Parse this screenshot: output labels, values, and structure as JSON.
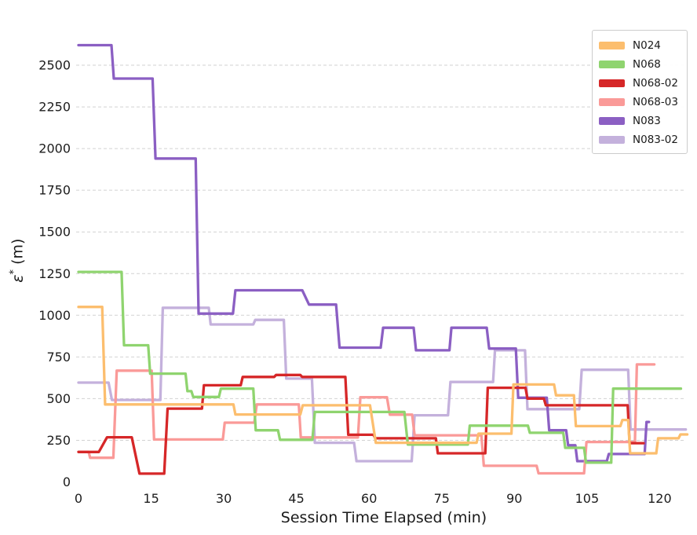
{
  "figure": {
    "ylabel_parts": {
      "symbol": "ε",
      "sup": "*",
      "unit": " (m)"
    }
  },
  "chart_data": {
    "type": "line",
    "subtype": "step",
    "title": "",
    "xlabel": "Session Time Elapsed (min)",
    "ylabel": "ε* (m)",
    "xlim": [
      0,
      126
    ],
    "ylim": [
      0,
      2730
    ],
    "xticks": [
      0,
      15,
      30,
      45,
      60,
      75,
      90,
      105,
      120
    ],
    "yticks": [
      0,
      250,
      500,
      750,
      1000,
      1250,
      1500,
      1750,
      2000,
      2250,
      2500
    ],
    "grid": "horizontal-dashed",
    "grid_color": "#d2d2d2",
    "legend_position": "upper right",
    "series": [
      {
        "name": "N024",
        "color": "#fcbe6e",
        "points": [
          [
            0,
            1050
          ],
          [
            4.9,
            1050
          ],
          [
            5.5,
            465
          ],
          [
            32.0,
            465
          ],
          [
            32.4,
            405
          ],
          [
            45.8,
            405
          ],
          [
            46.3,
            460
          ],
          [
            60.2,
            460
          ],
          [
            61.4,
            235
          ],
          [
            82.2,
            235
          ],
          [
            82.6,
            290
          ],
          [
            89.4,
            290
          ],
          [
            89.8,
            585
          ],
          [
            98.2,
            585
          ],
          [
            98.6,
            520
          ],
          [
            102.3,
            520
          ],
          [
            102.7,
            335
          ],
          [
            111.9,
            335
          ],
          [
            112.3,
            372
          ],
          [
            113.5,
            372
          ],
          [
            113.9,
            172
          ],
          [
            119.3,
            172
          ],
          [
            119.7,
            262
          ],
          [
            123.9,
            262
          ],
          [
            124.3,
            285
          ],
          [
            125.7,
            285
          ]
        ]
      },
      {
        "name": "N068",
        "color": "#8fd46f",
        "points": [
          [
            0,
            1260
          ],
          [
            8.9,
            1260
          ],
          [
            9.4,
            820
          ],
          [
            14.4,
            820
          ],
          [
            14.8,
            650
          ],
          [
            22.1,
            650
          ],
          [
            22.5,
            545
          ],
          [
            23.3,
            545
          ],
          [
            23.7,
            510
          ],
          [
            29.0,
            510
          ],
          [
            29.4,
            560
          ],
          [
            36.1,
            560
          ],
          [
            36.6,
            310
          ],
          [
            41.2,
            310
          ],
          [
            41.6,
            253
          ],
          [
            48.3,
            253
          ],
          [
            48.8,
            420
          ],
          [
            67.3,
            420
          ],
          [
            68.0,
            225
          ],
          [
            80.4,
            225
          ],
          [
            80.8,
            338
          ],
          [
            92.8,
            338
          ],
          [
            93.2,
            295
          ],
          [
            100.1,
            295
          ],
          [
            100.5,
            205
          ],
          [
            104.4,
            205
          ],
          [
            104.8,
            116
          ],
          [
            110.0,
            116
          ],
          [
            110.4,
            560
          ],
          [
            124.4,
            560
          ]
        ]
      },
      {
        "name": "N068-02",
        "color": "#d62728",
        "points": [
          [
            0,
            180
          ],
          [
            4.2,
            180
          ],
          [
            5.9,
            268
          ],
          [
            11.0,
            268
          ],
          [
            12.6,
            50
          ],
          [
            17.7,
            50
          ],
          [
            18.4,
            440
          ],
          [
            25.5,
            440
          ],
          [
            25.9,
            580
          ],
          [
            33.5,
            580
          ],
          [
            33.9,
            630
          ],
          [
            40.4,
            630
          ],
          [
            40.8,
            642
          ],
          [
            45.8,
            642
          ],
          [
            46.2,
            630
          ],
          [
            55.1,
            630
          ],
          [
            55.7,
            283
          ],
          [
            60.9,
            283
          ],
          [
            61.3,
            262
          ],
          [
            73.8,
            262
          ],
          [
            74.2,
            172
          ],
          [
            84.0,
            172
          ],
          [
            84.5,
            565
          ],
          [
            92.3,
            565
          ],
          [
            92.7,
            500
          ],
          [
            96.1,
            500
          ],
          [
            96.5,
            460
          ],
          [
            113.4,
            460
          ],
          [
            113.8,
            233
          ],
          [
            116.7,
            233
          ]
        ]
      },
      {
        "name": "N068-03",
        "color": "#fa9a98",
        "points": [
          [
            0,
            180
          ],
          [
            2.1,
            180
          ],
          [
            2.4,
            145
          ],
          [
            7.2,
            145
          ],
          [
            7.9,
            668
          ],
          [
            15.1,
            668
          ],
          [
            15.6,
            255
          ],
          [
            29.8,
            255
          ],
          [
            30.2,
            356
          ],
          [
            36.3,
            356
          ],
          [
            36.8,
            465
          ],
          [
            45.5,
            465
          ],
          [
            45.9,
            267
          ],
          [
            57.7,
            267
          ],
          [
            58.2,
            508
          ],
          [
            63.7,
            508
          ],
          [
            64.3,
            404
          ],
          [
            68.9,
            404
          ],
          [
            69.4,
            280
          ],
          [
            83.2,
            280
          ],
          [
            83.7,
            97
          ],
          [
            94.6,
            97
          ],
          [
            95.0,
            52
          ],
          [
            104.4,
            52
          ],
          [
            104.9,
            240
          ],
          [
            114.9,
            240
          ],
          [
            115.3,
            705
          ],
          [
            118.9,
            705
          ]
        ]
      },
      {
        "name": "N083",
        "color": "#8b5fc3",
        "points": [
          [
            0,
            2620
          ],
          [
            6.8,
            2620
          ],
          [
            7.3,
            2420
          ],
          [
            15.3,
            2420
          ],
          [
            15.9,
            1940
          ],
          [
            24.2,
            1940
          ],
          [
            24.8,
            1010
          ],
          [
            31.9,
            1010
          ],
          [
            32.4,
            1150
          ],
          [
            46.2,
            1150
          ],
          [
            47.6,
            1064
          ],
          [
            53.2,
            1064
          ],
          [
            53.9,
            806
          ],
          [
            62.4,
            806
          ],
          [
            62.9,
            925
          ],
          [
            69.2,
            925
          ],
          [
            69.7,
            790
          ],
          [
            76.6,
            790
          ],
          [
            77.0,
            925
          ],
          [
            84.3,
            925
          ],
          [
            84.8,
            800
          ],
          [
            90.3,
            800
          ],
          [
            90.8,
            505
          ],
          [
            96.7,
            505
          ],
          [
            97.2,
            310
          ],
          [
            100.7,
            310
          ],
          [
            101.1,
            220
          ],
          [
            102.6,
            220
          ],
          [
            103.0,
            125
          ],
          [
            109.1,
            125
          ],
          [
            109.5,
            168
          ],
          [
            116.9,
            168
          ],
          [
            117.3,
            360
          ],
          [
            117.8,
            360
          ]
        ]
      },
      {
        "name": "N083-02",
        "color": "#c4b1dc",
        "points": [
          [
            0,
            596
          ],
          [
            6.2,
            596
          ],
          [
            6.9,
            492
          ],
          [
            16.9,
            492
          ],
          [
            17.4,
            1045
          ],
          [
            26.9,
            1045
          ],
          [
            27.3,
            945
          ],
          [
            36.1,
            945
          ],
          [
            36.5,
            972
          ],
          [
            42.4,
            972
          ],
          [
            42.9,
            620
          ],
          [
            48.2,
            620
          ],
          [
            48.8,
            235
          ],
          [
            56.9,
            235
          ],
          [
            57.4,
            125
          ],
          [
            68.8,
            125
          ],
          [
            69.4,
            400
          ],
          [
            76.3,
            400
          ],
          [
            76.8,
            600
          ],
          [
            85.6,
            600
          ],
          [
            86.0,
            790
          ],
          [
            92.2,
            790
          ],
          [
            92.7,
            437
          ],
          [
            103.4,
            437
          ],
          [
            103.9,
            673
          ],
          [
            113.5,
            673
          ],
          [
            114.0,
            315
          ],
          [
            125.4,
            315
          ]
        ]
      }
    ]
  }
}
